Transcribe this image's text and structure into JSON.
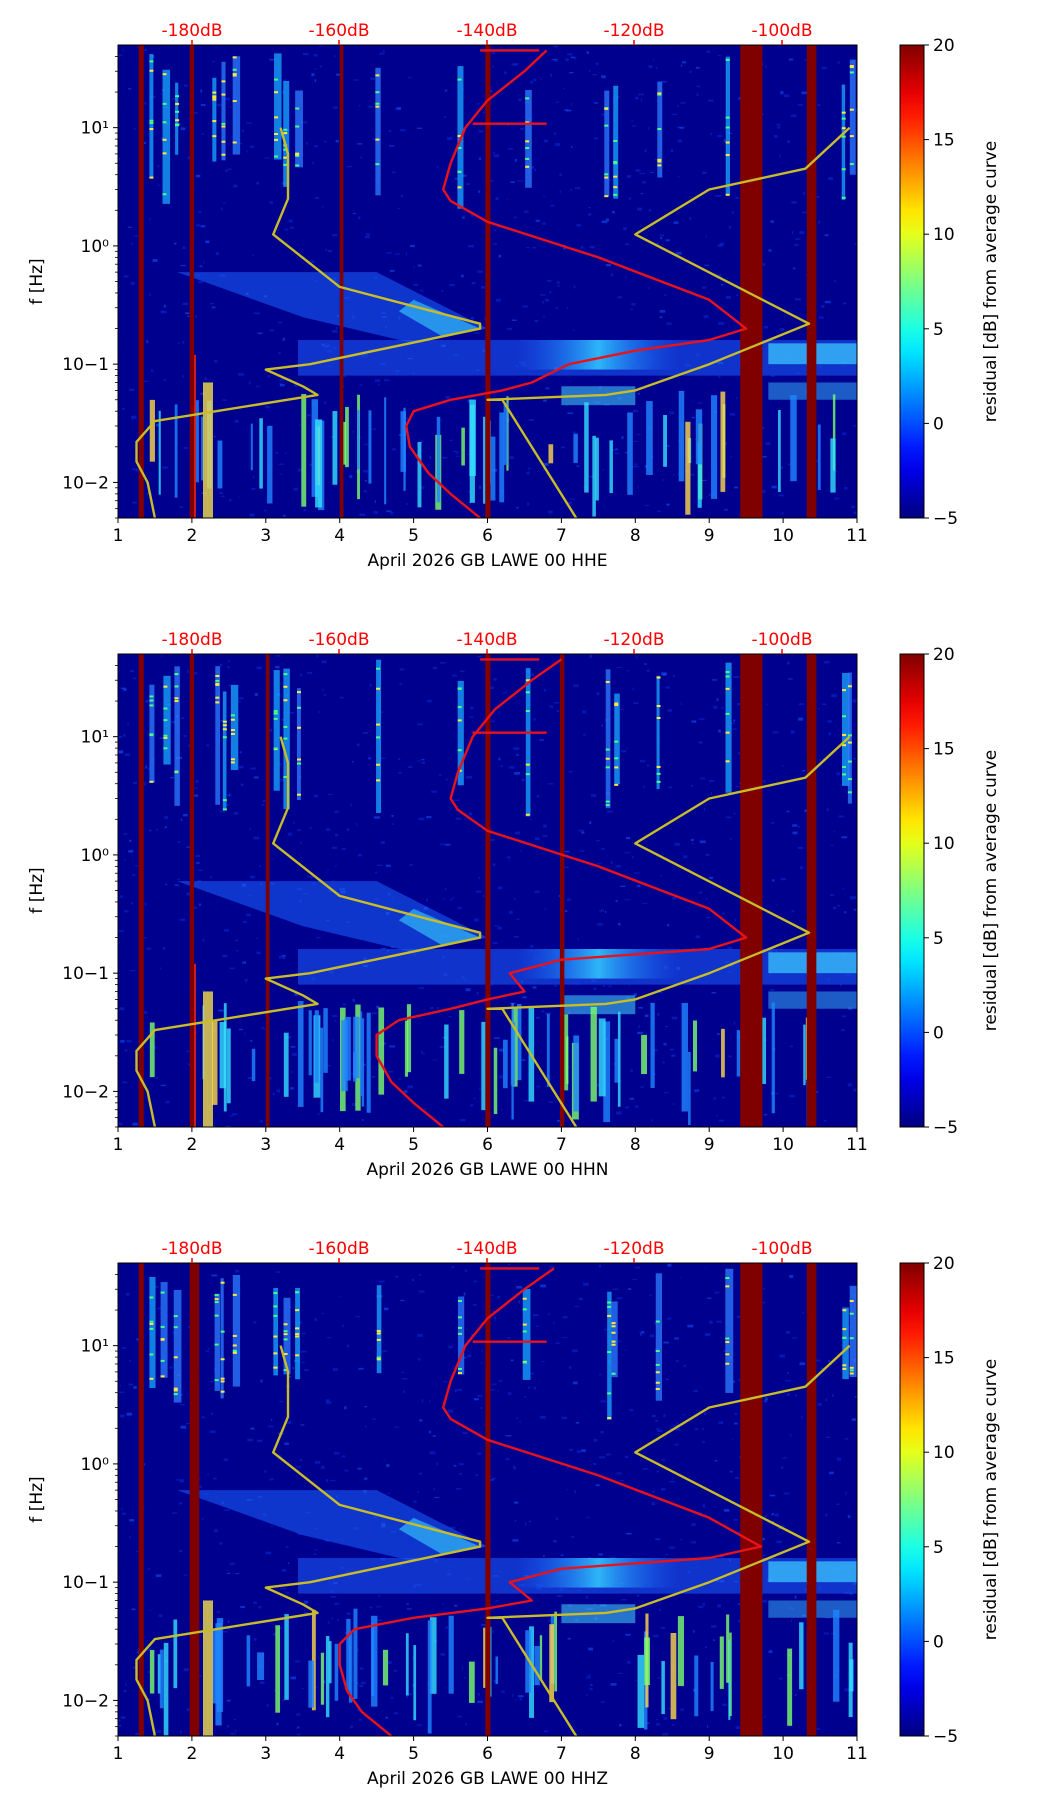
{
  "figure": {
    "colorbar": {
      "label": "residual [dB] from average curve",
      "ticks": [
        "20",
        "15",
        "10",
        "5",
        "0",
        "−5"
      ],
      "range": [
        -5,
        20
      ],
      "colormap": "jet"
    },
    "top_axis_labels": [
      "-180dB",
      "-160dB",
      "-140dB",
      "-120dB",
      "-100dB"
    ],
    "y_axis_label": "f [Hz]",
    "x_ticks": [
      "1",
      "2",
      "3",
      "4",
      "5",
      "6",
      "7",
      "8",
      "9",
      "10",
      "11"
    ],
    "y_ticks": [
      "10−2",
      "10−1",
      "10⁰",
      "10¹"
    ],
    "colors": {
      "red_curve": "#e8121b",
      "yellow_curve": "#c8bd28",
      "top_labels": "#ff0000",
      "background": "#00008f"
    }
  },
  "chart_data": [
    {
      "type": "heatmap",
      "title": "",
      "xlabel": "April 2026 GB LAWE 00 HHE",
      "ylabel": "f [Hz]",
      "xlim": [
        1,
        11
      ],
      "ylim_hz": [
        0.005,
        50
      ],
      "top_axis": {
        "label_values_db": [
          -180,
          -160,
          -140,
          -120,
          -100
        ]
      },
      "dark_red_bands_days": [
        [
          1.28,
          1.35
        ],
        [
          1.97,
          2.03
        ],
        [
          4.0,
          4.05
        ],
        [
          5.97,
          6.04
        ],
        [
          9.42,
          9.72
        ],
        [
          10.32,
          10.45
        ]
      ],
      "average_psd_curve_red": {
        "day_axis_equiv": [
          5.9,
          5.5,
          5.2,
          4.95,
          4.9,
          5.0,
          5.5,
          6.2,
          6.6,
          7.1,
          8.0,
          9.0,
          9.5,
          9.0,
          7.5,
          6.0,
          5.5,
          5.4,
          5.5,
          5.7,
          6.0,
          6.5,
          6.8
        ],
        "freq_hz": [
          0.005,
          0.008,
          0.012,
          0.02,
          0.03,
          0.04,
          0.05,
          0.06,
          0.07,
          0.1,
          0.13,
          0.16,
          0.2,
          0.35,
          0.8,
          1.6,
          2.4,
          3.0,
          5.0,
          10.0,
          17.0,
          30.0,
          45.0
        ]
      },
      "noise_model_curve_yellow": {
        "day_axis_equiv": [
          7.2,
          6.2,
          6.0,
          7.6,
          8.0,
          9.0,
          10.35,
          8.0,
          9.0,
          10.3,
          10.9
        ],
        "freq_hz": [
          0.005,
          0.05,
          0.05,
          0.055,
          0.06,
          0.1,
          0.22,
          1.25,
          3.0,
          4.5,
          10.0
        ]
      },
      "noise_model_curve_yellow_low": {
        "day_axis_equiv": [
          1.5,
          1.4,
          1.25,
          1.25,
          1.5,
          3.7,
          3.5,
          3.0,
          3.6,
          5.9,
          5.9,
          4.0,
          3.1,
          3.3,
          3.3,
          3.2
        ],
        "freq_hz": [
          0.005,
          0.01,
          0.015,
          0.022,
          0.033,
          0.055,
          0.065,
          0.09,
          0.1,
          0.2,
          0.22,
          0.45,
          1.25,
          2.5,
          6.0,
          10.0
        ]
      }
    },
    {
      "type": "heatmap",
      "title": "",
      "xlabel": "April 2026 GB LAWE 00 HHN",
      "ylabel": "f [Hz]",
      "xlim": [
        1,
        11
      ],
      "ylim_hz": [
        0.005,
        50
      ],
      "top_axis": {
        "label_values_db": [
          -180,
          -160,
          -140,
          -120,
          -100
        ]
      },
      "dark_red_bands_days": [
        [
          1.28,
          1.35
        ],
        [
          1.97,
          2.03
        ],
        [
          3.0,
          3.05
        ],
        [
          5.97,
          6.04
        ],
        [
          6.98,
          7.04
        ],
        [
          9.42,
          9.72
        ],
        [
          10.32,
          10.45
        ]
      ],
      "average_psd_curve_red": {
        "day_axis_equiv": [
          5.4,
          5.0,
          4.7,
          4.5,
          4.5,
          4.8,
          5.5,
          6.0,
          6.5,
          6.3,
          7.0,
          9.0,
          9.5,
          9.0,
          7.5,
          6.0,
          5.6,
          5.5,
          5.6,
          5.8,
          6.1,
          6.6,
          7.0
        ],
        "freq_hz": [
          0.005,
          0.008,
          0.012,
          0.02,
          0.03,
          0.04,
          0.05,
          0.06,
          0.07,
          0.1,
          0.13,
          0.16,
          0.2,
          0.35,
          0.8,
          1.6,
          2.4,
          3.0,
          5.0,
          10.0,
          17.0,
          30.0,
          45.0
        ]
      },
      "noise_model_curve_yellow": {
        "day_axis_equiv": [
          7.2,
          6.2,
          6.0,
          7.6,
          8.0,
          9.0,
          10.35,
          8.0,
          9.0,
          10.3,
          10.9
        ],
        "freq_hz": [
          0.005,
          0.05,
          0.05,
          0.055,
          0.06,
          0.1,
          0.22,
          1.25,
          3.0,
          4.5,
          10.0
        ]
      },
      "noise_model_curve_yellow_low": {
        "day_axis_equiv": [
          1.5,
          1.4,
          1.25,
          1.25,
          1.5,
          3.7,
          3.5,
          3.0,
          3.6,
          5.9,
          5.9,
          4.0,
          3.1,
          3.3,
          3.3,
          3.2
        ],
        "freq_hz": [
          0.005,
          0.01,
          0.015,
          0.022,
          0.033,
          0.055,
          0.065,
          0.09,
          0.1,
          0.2,
          0.22,
          0.45,
          1.25,
          2.5,
          6.0,
          10.0
        ]
      }
    },
    {
      "type": "heatmap",
      "title": "",
      "xlabel": "April 2026 GB LAWE 00 HHZ",
      "ylabel": "f [Hz]",
      "xlim": [
        1,
        11
      ],
      "ylim_hz": [
        0.005,
        50
      ],
      "top_axis": {
        "label_values_db": [
          -180,
          -160,
          -140,
          -120,
          -100
        ]
      },
      "dark_red_bands_days": [
        [
          1.28,
          1.35
        ],
        [
          1.97,
          2.1
        ],
        [
          5.97,
          6.04
        ],
        [
          9.42,
          9.72
        ],
        [
          10.32,
          10.45
        ]
      ],
      "average_psd_curve_red": {
        "day_axis_equiv": [
          4.7,
          4.3,
          4.1,
          4.0,
          4.0,
          4.2,
          5.0,
          6.0,
          6.6,
          6.3,
          7.0,
          9.0,
          9.7,
          9.0,
          7.5,
          6.0,
          5.5,
          5.4,
          5.5,
          5.7,
          6.0,
          6.5,
          6.9
        ],
        "freq_hz": [
          0.005,
          0.008,
          0.012,
          0.02,
          0.03,
          0.04,
          0.05,
          0.06,
          0.07,
          0.1,
          0.13,
          0.16,
          0.2,
          0.35,
          0.8,
          1.6,
          2.4,
          3.0,
          5.0,
          10.0,
          17.0,
          30.0,
          45.0
        ]
      },
      "noise_model_curve_yellow": {
        "day_axis_equiv": [
          7.2,
          6.2,
          6.0,
          7.6,
          8.0,
          9.0,
          10.35,
          8.0,
          9.0,
          10.3,
          10.9
        ],
        "freq_hz": [
          0.005,
          0.05,
          0.05,
          0.055,
          0.06,
          0.1,
          0.22,
          1.25,
          3.0,
          4.5,
          10.0
        ]
      },
      "noise_model_curve_yellow_low": {
        "day_axis_equiv": [
          1.5,
          1.4,
          1.25,
          1.25,
          1.5,
          3.7,
          3.5,
          3.0,
          3.6,
          5.9,
          5.9,
          4.0,
          3.1,
          3.3,
          3.3,
          3.2
        ],
        "freq_hz": [
          0.005,
          0.01,
          0.015,
          0.022,
          0.033,
          0.055,
          0.065,
          0.09,
          0.1,
          0.2,
          0.22,
          0.45,
          1.25,
          2.5,
          6.0,
          10.0
        ]
      }
    }
  ]
}
